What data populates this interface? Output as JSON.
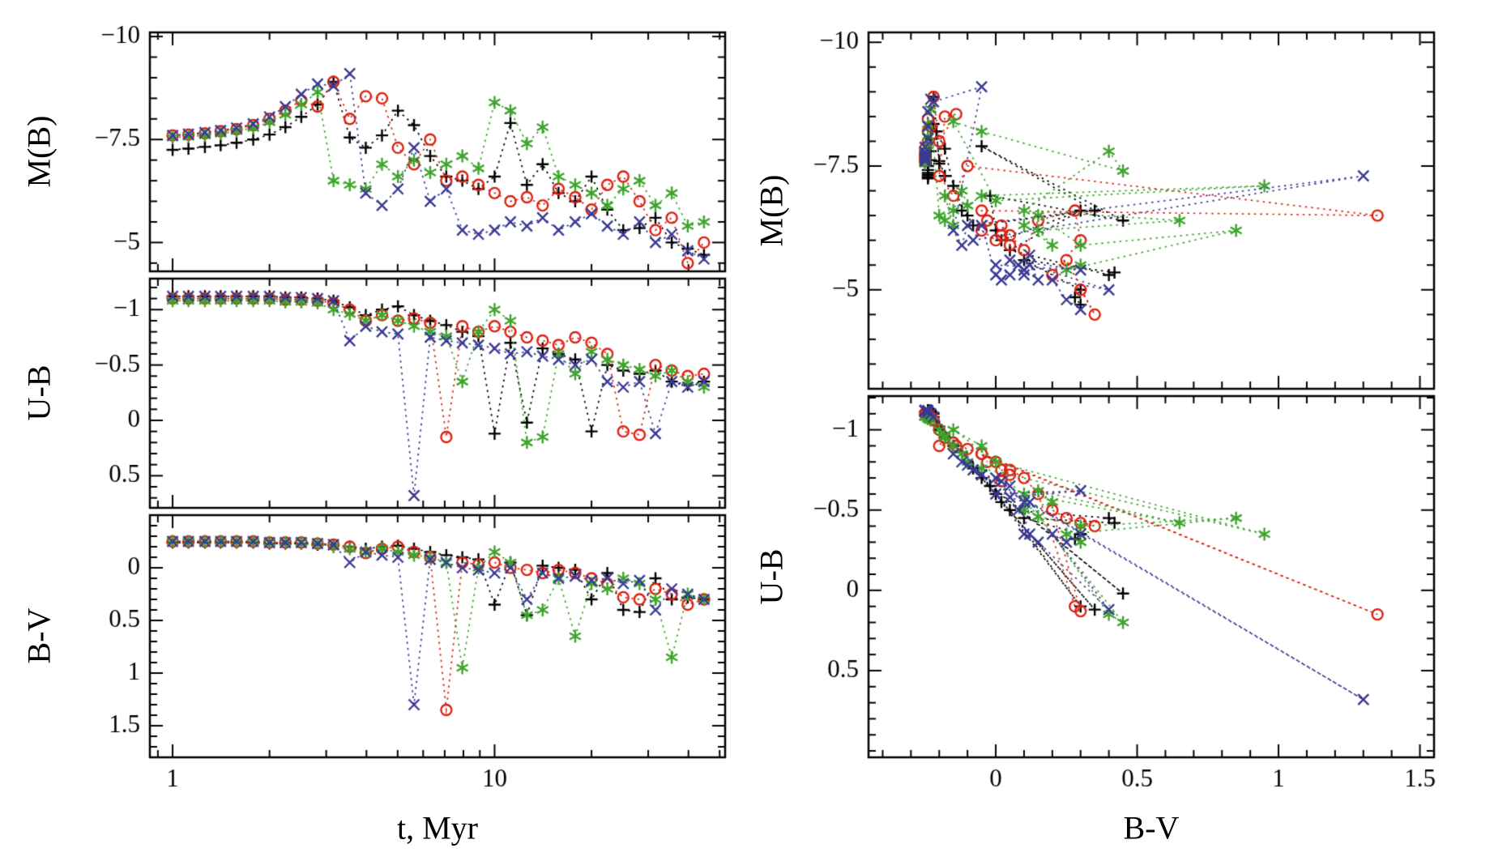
{
  "figure": {
    "background": "#ffffff",
    "left_block": {
      "x_label": "t, Myr",
      "y_labels": [
        "M(B)",
        "U-B",
        "B-V"
      ]
    },
    "right_block": {
      "x_label": "B-V",
      "y_labels": [
        "M(B)",
        "U-B"
      ]
    }
  },
  "chart_data": {
    "type": "line",
    "title": "",
    "legend_position": "none",
    "grid": false,
    "line_style": "dotted",
    "axes": {
      "time": {
        "scale": "log",
        "lim": [
          0.85,
          52
        ],
        "ticks": [
          1,
          10
        ],
        "tick_labels": [
          "1",
          "10"
        ],
        "minor": [
          0.9,
          2,
          3,
          4,
          5,
          6,
          7,
          8,
          9,
          20,
          30,
          40,
          50
        ],
        "label": "t, Myr"
      },
      "color": {
        "scale": "linear",
        "lim": [
          -0.45,
          1.55
        ],
        "ticks": [
          0,
          0.5,
          1,
          1.5
        ],
        "tick_labels": [
          "0",
          "0.5",
          "1",
          "1.5"
        ],
        "minor_step": 0.1,
        "label": "B-V"
      }
    },
    "panels": [
      {
        "id": "p1",
        "x_axis": "time",
        "y_field": "M_B",
        "ylabel": "M(B)",
        "ylim": [
          -10.1,
          -4.3
        ],
        "yticks": [
          -10,
          -7.5,
          -5
        ],
        "ytick_labels": [
          "−10",
          "−7.5",
          "−5"
        ],
        "yminor_step": 0.5,
        "show_x_tick_labels": false
      },
      {
        "id": "p2",
        "x_axis": "time",
        "y_field": "U_B",
        "ylabel": "U-B",
        "ylim": [
          -1.28,
          0.79
        ],
        "yticks": [
          -1,
          -0.5,
          0,
          0.5
        ],
        "ytick_labels": [
          "−1",
          "−0.5",
          "0",
          "0.5"
        ],
        "yminor_step": 0.1,
        "show_x_tick_labels": false
      },
      {
        "id": "p3",
        "x_axis": "time",
        "y_field": "B_V",
        "ylabel": "B-V",
        "ylim": [
          -0.5,
          1.8
        ],
        "yticks": [
          0,
          0.5,
          1,
          1.5
        ],
        "ytick_labels": [
          "0",
          "0.5",
          "1",
          "1.5"
        ],
        "yminor_step": 0.1,
        "show_x_tick_labels": true
      },
      {
        "id": "p4",
        "x_axis": "color",
        "y_field": "M_B",
        "ylabel": "M(B)",
        "ylim": [
          -10.2,
          -3.0
        ],
        "yticks": [
          -10,
          -7.5,
          -5
        ],
        "ytick_labels": [
          "−10",
          "−7.5",
          "−5"
        ],
        "yminor_step": 0.5,
        "show_x_tick_labels": false
      },
      {
        "id": "p5",
        "x_axis": "color",
        "y_field": "U_B",
        "ylabel": "U-B",
        "ylim": [
          -1.21,
          1.04
        ],
        "yticks": [
          -1,
          -0.5,
          0,
          0.5
        ],
        "ytick_labels": [
          "−1",
          "−0.5",
          "0",
          "0.5"
        ],
        "yminor_step": 0.1,
        "show_x_tick_labels": true
      }
    ],
    "t_myr": [
      1.0,
      1.12,
      1.26,
      1.41,
      1.58,
      1.78,
      2.0,
      2.24,
      2.51,
      2.82,
      3.16,
      3.55,
      3.98,
      4.47,
      5.01,
      5.62,
      6.31,
      7.08,
      7.94,
      8.91,
      10.0,
      11.2,
      12.6,
      14.1,
      15.8,
      17.8,
      20.0,
      22.4,
      25.1,
      28.2,
      31.6,
      35.5,
      39.8,
      44.7
    ],
    "series": [
      {
        "name": "black-plus-model",
        "marker": "plus",
        "color": "#000000",
        "M_B": [
          -7.25,
          -7.28,
          -7.32,
          -7.36,
          -7.42,
          -7.5,
          -7.62,
          -7.8,
          -8.05,
          -8.35,
          -8.9,
          -7.55,
          -7.3,
          -7.6,
          -8.2,
          -7.85,
          -7.1,
          -6.6,
          -6.5,
          -6.3,
          -6.6,
          -7.9,
          -6.4,
          -6.9,
          -6.2,
          -6.0,
          -6.6,
          -5.8,
          -5.3,
          -5.35,
          -5.6,
          -5.0,
          -4.85,
          -4.7
        ],
        "U_B": [
          -1.12,
          -1.12,
          -1.12,
          -1.12,
          -1.12,
          -1.12,
          -1.12,
          -1.11,
          -1.11,
          -1.1,
          -1.08,
          -1.02,
          -0.95,
          -1.0,
          -1.03,
          -0.95,
          -0.9,
          -0.86,
          -0.8,
          -0.76,
          0.12,
          -0.7,
          0.02,
          -0.65,
          -0.6,
          -0.55,
          0.1,
          -0.5,
          -0.45,
          -0.42,
          -0.45,
          -0.35,
          -0.32,
          -0.35
        ],
        "B_V": [
          -0.24,
          -0.24,
          -0.24,
          -0.24,
          -0.24,
          -0.24,
          -0.23,
          -0.23,
          -0.23,
          -0.22,
          -0.22,
          -0.2,
          -0.18,
          -0.2,
          -0.21,
          -0.18,
          -0.15,
          -0.12,
          -0.1,
          -0.08,
          0.35,
          -0.05,
          0.45,
          -0.02,
          0.0,
          0.02,
          0.3,
          0.05,
          0.4,
          0.42,
          0.1,
          0.3,
          0.28,
          0.3
        ]
      },
      {
        "name": "red-circle-model",
        "marker": "circle",
        "color": "#dd2211",
        "M_B": [
          -7.6,
          -7.62,
          -7.65,
          -7.7,
          -7.75,
          -7.85,
          -8.0,
          -8.2,
          -8.45,
          -8.3,
          -8.9,
          -8.0,
          -8.55,
          -8.5,
          -7.3,
          -6.9,
          -7.5,
          -6.5,
          -6.6,
          -6.4,
          -6.2,
          -6.0,
          -6.1,
          -5.9,
          -6.3,
          -6.1,
          -5.8,
          -6.4,
          -6.6,
          -6.0,
          -5.3,
          -5.6,
          -4.5,
          -5.0
        ],
        "U_B": [
          -1.1,
          -1.1,
          -1.1,
          -1.1,
          -1.1,
          -1.1,
          -1.1,
          -1.09,
          -1.09,
          -1.08,
          -1.06,
          -1.0,
          -0.9,
          -0.95,
          -0.9,
          -0.92,
          -0.88,
          0.15,
          -0.85,
          -0.8,
          -0.85,
          -0.8,
          -0.75,
          -0.72,
          -0.68,
          -0.75,
          -0.7,
          -0.6,
          0.1,
          0.13,
          -0.5,
          -0.45,
          -0.4,
          -0.42
        ],
        "B_V": [
          -0.25,
          -0.25,
          -0.25,
          -0.25,
          -0.25,
          -0.25,
          -0.24,
          -0.24,
          -0.24,
          -0.23,
          -0.22,
          -0.2,
          -0.14,
          -0.18,
          -0.2,
          -0.15,
          -0.1,
          1.35,
          -0.05,
          -0.03,
          -0.05,
          0.0,
          0.02,
          0.05,
          0.02,
          0.05,
          0.1,
          0.15,
          0.28,
          0.3,
          0.2,
          0.25,
          0.35,
          0.3
        ]
      },
      {
        "name": "green-asterisk-model",
        "marker": "asterisk",
        "color": "#3da42c",
        "M_B": [
          -7.55,
          -7.57,
          -7.6,
          -7.64,
          -7.7,
          -7.78,
          -7.92,
          -8.1,
          -8.35,
          -8.65,
          -6.5,
          -6.4,
          -6.3,
          -6.9,
          -6.6,
          -7.0,
          -6.7,
          -6.9,
          -7.1,
          -6.8,
          -8.4,
          -8.2,
          -7.4,
          -7.8,
          -6.6,
          -6.4,
          -6.2,
          -5.9,
          -6.3,
          -6.5,
          -5.9,
          -6.2,
          -5.4,
          -5.5
        ],
        "U_B": [
          -1.08,
          -1.08,
          -1.08,
          -1.08,
          -1.08,
          -1.08,
          -1.08,
          -1.07,
          -1.07,
          -1.06,
          -1.0,
          -0.96,
          -0.9,
          -0.95,
          -0.9,
          -0.85,
          -0.8,
          -0.76,
          -0.35,
          -0.8,
          -1.0,
          -0.9,
          0.2,
          0.15,
          -0.6,
          -0.42,
          -0.62,
          -0.55,
          -0.5,
          -0.46,
          -0.4,
          -0.45,
          -0.35,
          -0.3
        ],
        "B_V": [
          -0.25,
          -0.25,
          -0.25,
          -0.25,
          -0.25,
          -0.25,
          -0.24,
          -0.24,
          -0.24,
          -0.23,
          -0.2,
          -0.18,
          -0.15,
          -0.18,
          -0.15,
          -0.12,
          -0.1,
          -0.05,
          0.95,
          0.0,
          -0.15,
          -0.05,
          0.45,
          0.4,
          0.1,
          0.65,
          0.15,
          0.2,
          0.1,
          0.15,
          0.3,
          0.85,
          0.25,
          0.3
        ]
      },
      {
        "name": "blue-cross-model",
        "marker": "cross",
        "color": "#3a3a95",
        "M_B": [
          -7.6,
          -7.63,
          -7.67,
          -7.72,
          -7.78,
          -7.88,
          -8.05,
          -8.3,
          -8.6,
          -8.85,
          -8.8,
          -9.1,
          -6.2,
          -5.9,
          -6.3,
          -7.3,
          -6.0,
          -6.3,
          -5.3,
          -5.2,
          -5.3,
          -5.5,
          -5.4,
          -5.6,
          -5.3,
          -5.5,
          -5.7,
          -5.4,
          -5.2,
          -5.5,
          -5.0,
          -5.2,
          -4.8,
          -4.6
        ],
        "U_B": [
          -1.12,
          -1.12,
          -1.12,
          -1.12,
          -1.12,
          -1.12,
          -1.12,
          -1.11,
          -1.11,
          -1.1,
          -1.08,
          -0.72,
          -0.85,
          -0.8,
          -0.78,
          0.68,
          -0.75,
          -0.72,
          -0.7,
          -0.68,
          -0.65,
          -0.6,
          -0.62,
          -0.58,
          -0.55,
          -0.5,
          -0.55,
          -0.35,
          -0.3,
          -0.35,
          0.12,
          -0.35,
          -0.3,
          -0.35
        ],
        "B_V": [
          -0.25,
          -0.25,
          -0.25,
          -0.25,
          -0.25,
          -0.25,
          -0.24,
          -0.24,
          -0.24,
          -0.23,
          -0.22,
          -0.05,
          -0.15,
          -0.12,
          -0.1,
          1.3,
          -0.08,
          -0.05,
          0.0,
          0.02,
          0.05,
          0.0,
          0.3,
          0.05,
          0.1,
          0.08,
          0.12,
          0.1,
          0.15,
          0.12,
          0.4,
          0.2,
          0.25,
          0.3
        ]
      }
    ]
  }
}
